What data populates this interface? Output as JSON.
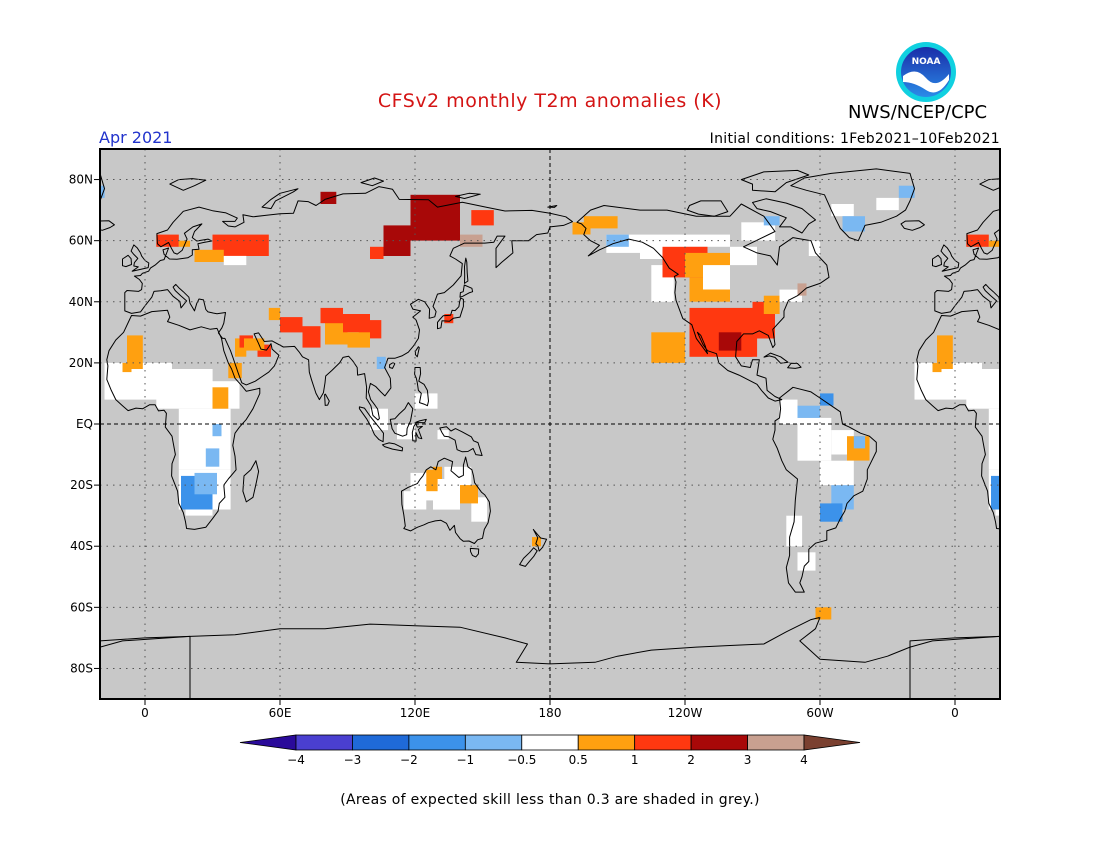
{
  "title": "CFSv2 monthly T2m anomalies (K)",
  "agency": "NWS/NCEP/CPC",
  "logo_text": "NOAA",
  "valid_month": "Apr 2021",
  "initial_conditions": "Initial conditions: 1Feb2021–10Feb2021",
  "footnote": "(Areas of expected skill less than 0.3 are shaded in grey.)",
  "map": {
    "projection": "equirectangular",
    "lon_range": [
      -20,
      380
    ],
    "lat_range": [
      -90,
      90
    ],
    "grey_color": "#c8c8c8",
    "lat_labels": [
      {
        "lat": 80,
        "label": "80N"
      },
      {
        "lat": 60,
        "label": "60N"
      },
      {
        "lat": 40,
        "label": "40N"
      },
      {
        "lat": 20,
        "label": "20N"
      },
      {
        "lat": 0,
        "label": "EQ"
      },
      {
        "lat": -20,
        "label": "20S"
      },
      {
        "lat": -40,
        "label": "40S"
      },
      {
        "lat": -60,
        "label": "60S"
      },
      {
        "lat": -80,
        "label": "80S"
      }
    ],
    "lon_labels": [
      {
        "lon": 0,
        "label": "0"
      },
      {
        "lon": 60,
        "label": "60E"
      },
      {
        "lon": 120,
        "label": "120E"
      },
      {
        "lon": 180,
        "label": "180"
      },
      {
        "lon": 240,
        "label": "120W"
      },
      {
        "lon": 300,
        "label": "60W"
      },
      {
        "lon": 360,
        "label": "0"
      }
    ]
  },
  "colorbar": {
    "colors": [
      "#2a0a9a",
      "#4a3fd0",
      "#1f6ad8",
      "#3c92ea",
      "#7ab8f2",
      "#ffffff",
      "#ffa010",
      "#ff3810",
      "#a80808",
      "#c8a090",
      "#7a4030"
    ],
    "labels": [
      "−4",
      "−3",
      "−2",
      "−1",
      "−0.5",
      "0.5",
      "1",
      "2",
      "3",
      "4"
    ]
  },
  "anomaly_regions": [
    {
      "region": "Western US / Mexico",
      "category": "2",
      "color": "#ff3810"
    },
    {
      "region": "Southern plains core",
      "category": "3",
      "color": "#a80808"
    },
    {
      "region": "Western Canada",
      "category": "1",
      "color": "#ffa010"
    },
    {
      "region": "Eastern Siberia",
      "category": "3",
      "color": "#a80808"
    },
    {
      "region": "Central Asia / Tibet",
      "category": "2",
      "color": "#ff3810"
    },
    {
      "region": "Scandinavia / Russia",
      "category": "2",
      "color": "#ff3810"
    },
    {
      "region": "Southern Africa",
      "category": "−1",
      "color": "#3c92ea"
    },
    {
      "region": "Eastern Brazil",
      "category": "1",
      "color": "#ffa010"
    },
    {
      "region": "Northern Australia",
      "category": "1",
      "color": "#ffa010"
    },
    {
      "region": "Southern Brazil",
      "category": "−1",
      "color": "#3c92ea"
    }
  ]
}
